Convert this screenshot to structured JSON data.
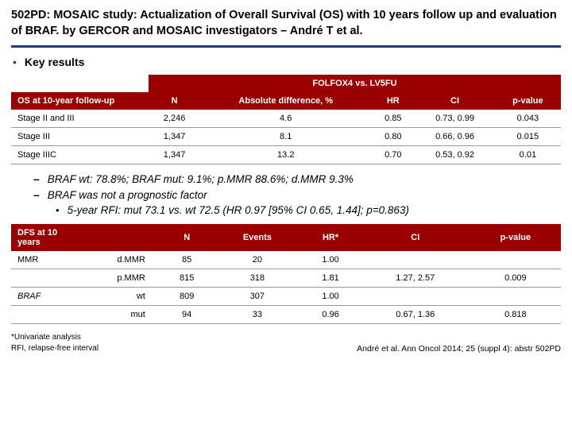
{
  "title": "502PD: MOSAIC study: Actualization of Overall Survival (OS) with 10 years follow up and evaluation of BRAF. by GERCOR and MOSAIC investigators – André T et al.",
  "key_results_label": "Key results",
  "table1": {
    "group_header": "FOLFOX4 vs. LV5FU",
    "headers": [
      "OS at 10-year follow-up",
      "N",
      "Absolute difference, %",
      "HR",
      "CI",
      "p-value"
    ],
    "rows": [
      [
        "Stage II and III",
        "2,246",
        "4.6",
        "0.85",
        "0.73, 0.99",
        "0.043"
      ],
      [
        "Stage III",
        "1,347",
        "8.1",
        "0.80",
        "0.66, 0.96",
        "0.015"
      ],
      [
        "Stage IIIC",
        "1,347",
        "13.2",
        "0.70",
        "0.53, 0.92",
        "0.01"
      ]
    ]
  },
  "sub_bullets": [
    "BRAF wt: 78.8%; BRAF mut: 9.1%; p.MMR 88.6%; d.MMR 9.3%",
    "BRAF was not a prognostic factor"
  ],
  "sub_sub_bullet": "5-year RFI: mut 73.1 vs. wt 72.5 (HR 0.97 [95% CI 0.65, 1.44]; p=0.863)",
  "table2": {
    "headers": [
      "DFS at 10 years",
      "",
      "N",
      "Events",
      "HR*",
      "CI",
      "p-value"
    ],
    "rows": [
      [
        "MMR",
        "d.MMR",
        "85",
        "20",
        "1.00",
        "",
        ""
      ],
      [
        "",
        "p.MMR",
        "815",
        "318",
        "1.81",
        "1.27, 2.57",
        "0.009"
      ],
      [
        "BRAF",
        "wt",
        "809",
        "307",
        "1.00",
        "",
        ""
      ],
      [
        "",
        "mut",
        "94",
        "33",
        "0.96",
        "0.67, 1.36",
        "0.818"
      ]
    ],
    "italic_col1_rows": [
      2,
      3
    ]
  },
  "footnote_left_1": "*Univariate analysis",
  "footnote_left_2": "RFI, relapse-free interval",
  "footnote_right": "André et al. Ann Oncol 2014; 25 (suppl 4): abstr 502PD"
}
